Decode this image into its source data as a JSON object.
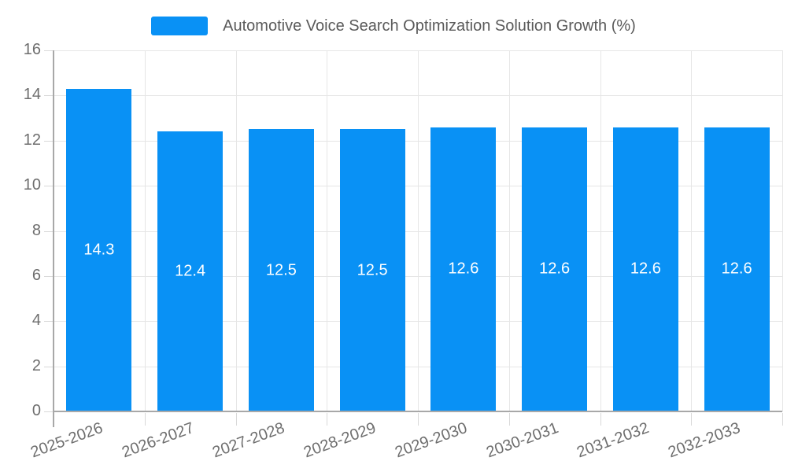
{
  "chart_data": {
    "type": "bar",
    "title": "Automotive Voice Search Optimization Solution Growth (%)",
    "legend": {
      "position": "top-center",
      "label": "Automotive Voice Search Optimization Solution Growth (%)"
    },
    "categories": [
      "2025-2026",
      "2026-2027",
      "2027-2028",
      "2028-2029",
      "2029-2030",
      "2030-2031",
      "2031-2032",
      "2032-2033"
    ],
    "values": [
      14.3,
      12.4,
      12.5,
      12.5,
      12.6,
      12.6,
      12.6,
      12.6
    ],
    "xlabel": "",
    "ylabel": "",
    "ylim": [
      0,
      16
    ],
    "yticks": [
      0,
      2,
      4,
      6,
      8,
      10,
      12,
      14,
      16
    ],
    "grid": true,
    "bar_label_position": "inside-center",
    "bar_label_decimals": 1,
    "x_label_rotation_deg": -20,
    "colors": {
      "bar": "#0991F5",
      "bar_label": "#FFFFFF",
      "axis": "#A8A8A8",
      "grid": "#E6E6E6",
      "tick": "#D9D9D9",
      "tick_label": "#6E6E6E",
      "legend_text": "#5A5A5A",
      "background": "#FFFFFF"
    }
  }
}
